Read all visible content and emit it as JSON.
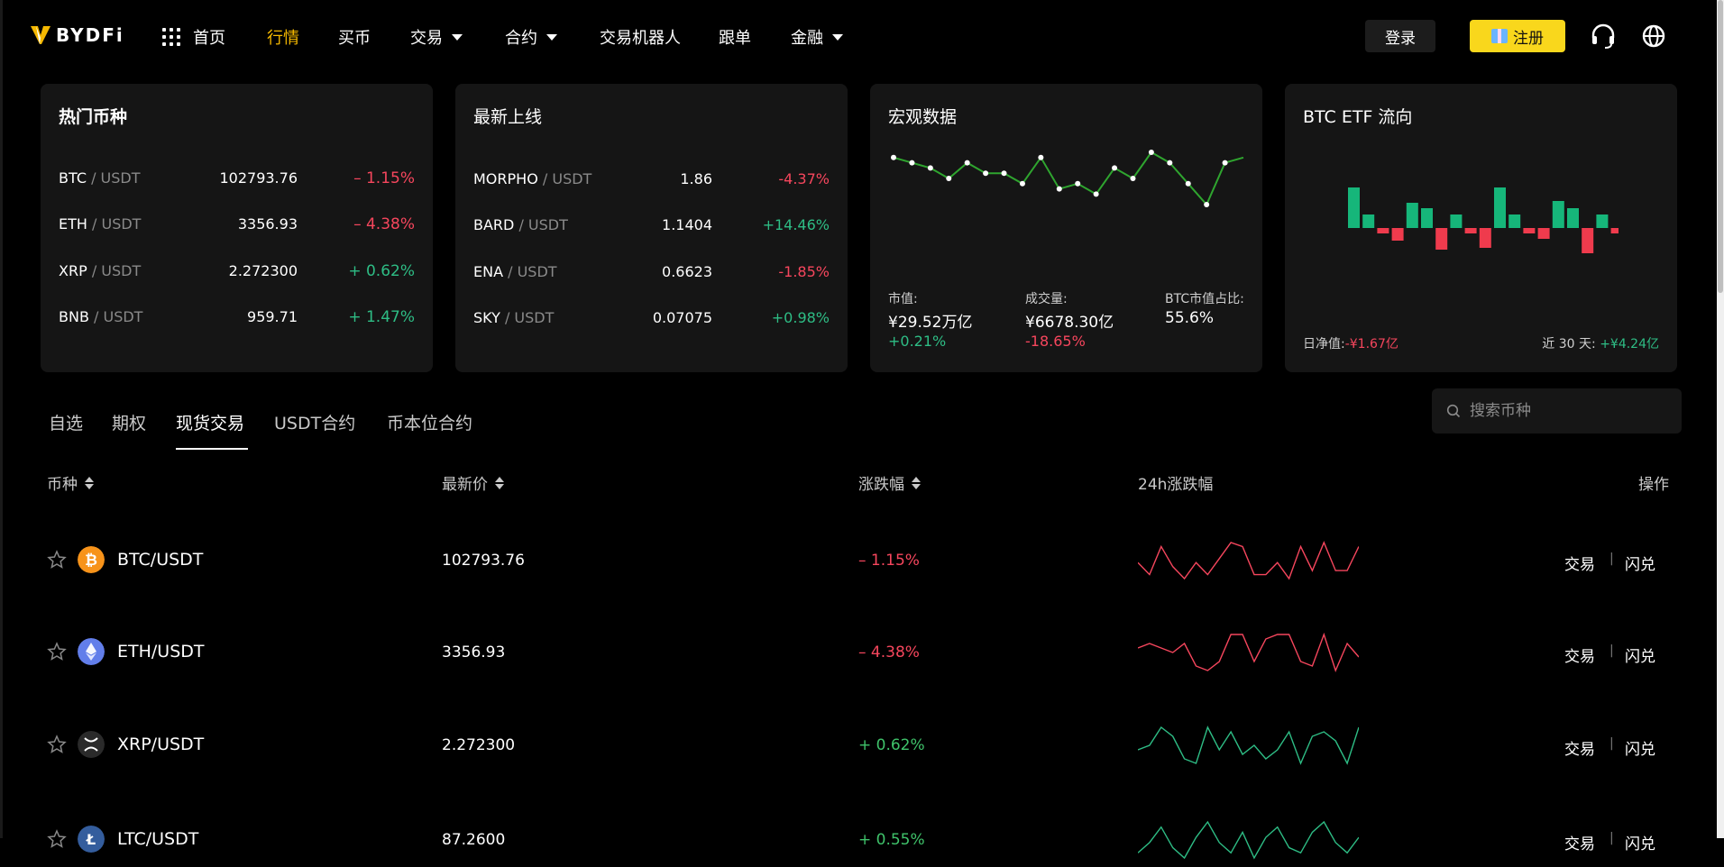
{
  "brand": {
    "name": "BYDFi"
  },
  "nav": {
    "items": [
      {
        "label": "首页",
        "active": false,
        "dropdown": false,
        "icon": "grid-icon"
      },
      {
        "label": "行情",
        "active": true,
        "dropdown": false
      },
      {
        "label": "买币",
        "active": false,
        "dropdown": false
      },
      {
        "label": "交易",
        "active": false,
        "dropdown": true
      },
      {
        "label": "合约",
        "active": false,
        "dropdown": true
      },
      {
        "label": "交易机器人",
        "active": false,
        "dropdown": false
      },
      {
        "label": "跟单",
        "active": false,
        "dropdown": false
      },
      {
        "label": "金融",
        "active": false,
        "dropdown": true
      }
    ],
    "login_label": "登录",
    "register_label": "注册",
    "support_icon": "headset-icon",
    "language_icon": "globe-icon"
  },
  "cards": {
    "hot": {
      "title": "热门币种",
      "rows": [
        {
          "base": "BTC",
          "quote": " / USDT",
          "price": "102793.76",
          "change": "– 1.15%",
          "dir": "down"
        },
        {
          "base": "ETH",
          "quote": " / USDT",
          "price": "3356.93",
          "change": "– 4.38%",
          "dir": "down"
        },
        {
          "base": "XRP",
          "quote": " / USDT",
          "price": "2.272300",
          "change": "+ 0.62%",
          "dir": "up"
        },
        {
          "base": "BNB",
          "quote": " / USDT",
          "price": "959.71",
          "change": "+ 1.47%",
          "dir": "up"
        }
      ]
    },
    "new": {
      "title": "最新上线",
      "rows": [
        {
          "base": "MORPHO",
          "quote": " / USDT",
          "price": "1.86",
          "change": "-4.37%",
          "dir": "down"
        },
        {
          "base": "BARD",
          "quote": " / USDT",
          "price": "1.1404",
          "change": "+14.46%",
          "dir": "up"
        },
        {
          "base": "ENA",
          "quote": " / USDT",
          "price": "0.6623",
          "change": "-1.85%",
          "dir": "down"
        },
        {
          "base": "SKY",
          "quote": " / USDT",
          "price": "0.07075",
          "change": "+0.98%",
          "dir": "up"
        }
      ]
    },
    "macro": {
      "title": "宏观数据",
      "spark_values": [
        6,
        5,
        4,
        2,
        5,
        3,
        3,
        1,
        6,
        0,
        1,
        -1,
        4,
        2,
        7,
        5,
        1,
        -3,
        5,
        6
      ],
      "market_cap_label": "市值:",
      "market_cap_value": "¥29.52万亿",
      "market_cap_change": "+0.21%",
      "volume_label": "成交量:",
      "volume_value": "¥6678.30亿",
      "volume_change": "-18.65%",
      "dominance_label": "BTC市值占比:",
      "dominance_value": "55.6%"
    },
    "etf": {
      "title": "BTC ETF 流向",
      "bars": [
        45,
        15,
        -6,
        -14,
        28,
        22,
        -24,
        15,
        -6,
        -22,
        45,
        15,
        -6,
        -12,
        30,
        22,
        -28,
        15,
        -6,
        -22
      ],
      "daily_label": "日净值:",
      "daily_value": "-¥1.67亿",
      "month_label": "近 30 天:",
      "month_value": "+¥4.24亿"
    }
  },
  "tabs": [
    {
      "label": "自选",
      "active": false
    },
    {
      "label": "期权",
      "active": false
    },
    {
      "label": "现货交易",
      "active": true
    },
    {
      "label": "USDT合约",
      "active": false
    },
    {
      "label": "币本位合约",
      "active": false
    }
  ],
  "search": {
    "placeholder": "搜索币种"
  },
  "table": {
    "headers": {
      "coin": "币种",
      "price": "最新价",
      "change": "涨跌幅",
      "spark": "24h涨跌幅",
      "action": "操作"
    },
    "rows": [
      {
        "pair": "BTC/USDT",
        "icon": "bitcoin-icon",
        "icon_color": "#f7931a",
        "price": "102793.76",
        "change": "– 1.15%",
        "dir": "down",
        "spark": [
          5,
          2,
          9,
          4,
          1,
          5,
          2,
          6,
          10,
          9,
          2,
          2,
          5,
          1,
          9,
          3,
          10,
          3,
          3,
          9
        ],
        "trade": "交易",
        "swap": "闪兑"
      },
      {
        "pair": "ETH/USDT",
        "icon": "ethereum-icon",
        "icon_color": "#627eea",
        "price": "3356.93",
        "change": "– 4.38%",
        "dir": "down",
        "spark": [
          6,
          7,
          6,
          5,
          7,
          2,
          1,
          3,
          9,
          9,
          3,
          8,
          9,
          9,
          3,
          2,
          9,
          1,
          7,
          4
        ],
        "trade": "交易",
        "swap": "闪兑"
      },
      {
        "pair": "XRP/USDT",
        "icon": "xrp-icon",
        "icon_color": "#2a2a2a",
        "price": "2.272300",
        "change": "+ 0.62%",
        "dir": "up",
        "spark": [
          4,
          5,
          9,
          7,
          2,
          1,
          9,
          4,
          8,
          3,
          5,
          2,
          4,
          8,
          1,
          7,
          8,
          6,
          1,
          9
        ],
        "trade": "交易",
        "swap": "闪兑"
      },
      {
        "pair": "LTC/USDT",
        "icon": "litecoin-icon",
        "icon_color": "#345d9d",
        "price": "87.2600",
        "change": "+ 0.55%",
        "dir": "up",
        "spark": [
          3,
          5,
          8,
          4,
          2,
          6,
          9,
          5,
          3,
          7,
          2,
          6,
          8,
          4,
          3,
          7,
          9,
          5,
          3,
          6
        ],
        "trade": "交易",
        "swap": "闪兑"
      }
    ]
  },
  "colors": {
    "accent": "#f5b800",
    "up": "#2ebd85",
    "down": "#f6465d",
    "card_bg": "#151515"
  }
}
